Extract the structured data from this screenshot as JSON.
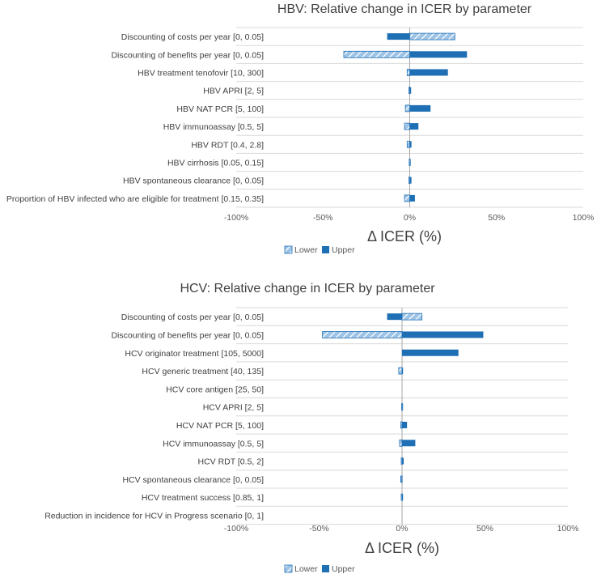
{
  "colors": {
    "upper": "#1f6fb5",
    "lower_fill": "#9dc3e6",
    "lower_stripe": "#ffffff",
    "lower_border": "#1f6fb5",
    "grid": "#d9d9d9",
    "zero_line": "#a6a6a6"
  },
  "chart_data": [
    {
      "type": "bar",
      "orientation": "horizontal",
      "title": "HBV: Relative change in ICER by parameter",
      "xlabel": "Δ ICER (%)",
      "xlim": [
        -100,
        100
      ],
      "xticks": [
        -100,
        -50,
        0,
        50,
        100
      ],
      "xtick_labels": [
        "-100%",
        "-50%",
        "0%",
        "50%",
        "100%"
      ],
      "legend": [
        "Lower",
        "Upper"
      ],
      "legend_position": "bottom",
      "categories": [
        "Discounting of costs per year [0, 0.05]",
        "Discounting of benefits per year [0, 0.05]",
        "HBV treatment tenofovir [10, 300]",
        "HBV APRI [2, 5]",
        "HBV NAT PCR [5, 100]",
        "HBV immunoassay [0.5, 5]",
        "HBV RDT [0.4, 2.8]",
        "HBV cirrhosis [0.05, 0.15]",
        "HBV spontaneous clearance [0, 0.05]",
        "Proportion of HBV infected who are eligible for treatment [0.15, 0.35]"
      ],
      "series": [
        {
          "name": "Lower",
          "values": [
            26,
            -38,
            -1.5,
            -0.5,
            -2.5,
            -3,
            -1.5,
            -0.3,
            -0.5,
            -3
          ]
        },
        {
          "name": "Upper",
          "values": [
            -13,
            33,
            22,
            0.8,
            12,
            5,
            1,
            0.3,
            1,
            3
          ]
        }
      ]
    },
    {
      "type": "bar",
      "orientation": "horizontal",
      "title": "HCV: Relative change in ICER by parameter",
      "xlabel": "Δ ICER (%)",
      "xlim": [
        -100,
        100
      ],
      "xticks": [
        -100,
        -50,
        0,
        50,
        100
      ],
      "xtick_labels": [
        "-100%",
        "-50%",
        "0%",
        "50%",
        "100%"
      ],
      "legend": [
        "Lower",
        "Upper"
      ],
      "legend_position": "bottom",
      "categories": [
        "Discounting of costs per year [0, 0.05]",
        "Discounting of benefits per year [0, 0.05]",
        "HCV originator treatment [105, 5000]",
        "HCV generic treatment [40, 135]",
        "HCV core antigen [25, 50]",
        "HCV APRI [2, 5]",
        "HCV NAT PCR [5, 100]",
        "HCV immunoassay [0.5, 5]",
        "HCV RDT [0.5, 2]",
        "HCV spontaneous clearance [0, 0.05]",
        "HCV treatment success [0.85, 1]",
        "Reduction in incidence for HCV in Progress scenario [0, 1]"
      ],
      "series": [
        {
          "name": "Lower",
          "values": [
            12,
            -48,
            0,
            -2,
            0,
            -0.3,
            -0.8,
            -1.5,
            -0.5,
            -0.5,
            -0.5,
            0
          ]
        },
        {
          "name": "Upper",
          "values": [
            -9,
            49,
            34,
            0.5,
            0,
            0.3,
            3,
            8,
            1,
            -1,
            0.3,
            0
          ]
        }
      ]
    }
  ]
}
